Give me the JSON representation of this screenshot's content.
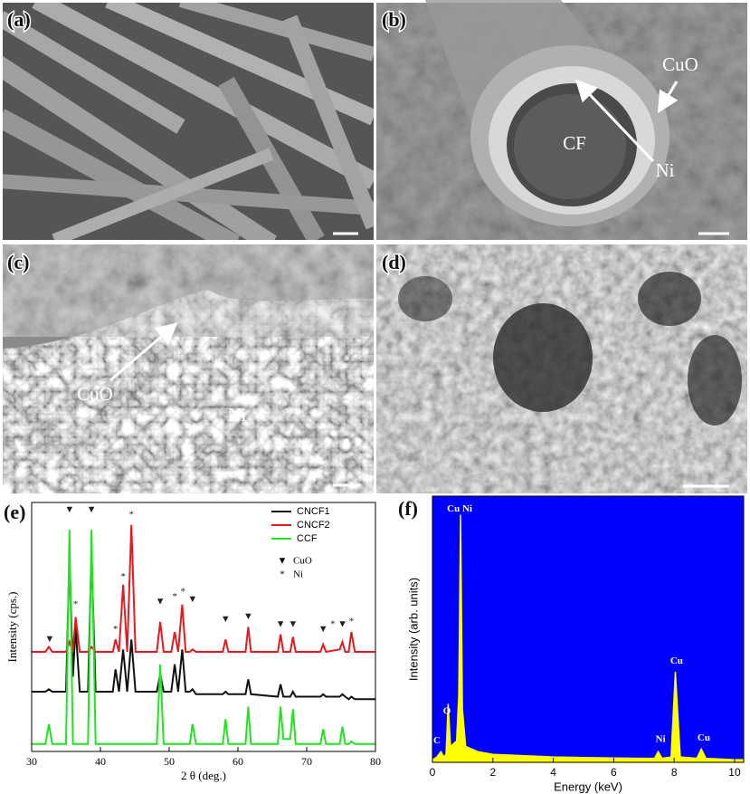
{
  "panels": [
    {
      "label": "(a)"
    },
    {
      "label": "(b)",
      "texts": [
        "CuO",
        "CF",
        "Ni"
      ]
    },
    {
      "label": "(c)",
      "texts": [
        "CuO",
        "Ni"
      ]
    },
    {
      "label": "(d)"
    }
  ],
  "chart_data": [
    {
      "type": "line",
      "panel_label": "(e)",
      "xlabel": "2 θ  (deg.)",
      "ylabel": "Intensity (cps.)",
      "xlim": [
        30,
        80
      ],
      "xticks": [
        30,
        40,
        50,
        60,
        70,
        80
      ],
      "ylim": [
        0,
        100
      ],
      "x": [
        30,
        32,
        32.5,
        33,
        35,
        35.5,
        36,
        36.4,
        37,
        38.2,
        38.7,
        39.3,
        41.8,
        42.2,
        42.7,
        43.3,
        43.9,
        44.5,
        45.1,
        48.2,
        48.7,
        49.2,
        50.3,
        50.8,
        51.3,
        51.9,
        52.4,
        53,
        53.4,
        53.9,
        57.8,
        58.2,
        58.6,
        61.1,
        61.5,
        61.9,
        65.8,
        66.2,
        66.6,
        67.6,
        68,
        68.4,
        72,
        72.4,
        72.8,
        74.8,
        75.2,
        75.6,
        76.1,
        76.5,
        77,
        80
      ],
      "series": [
        {
          "name": "CNCF1",
          "color": "#111111",
          "values": [
            24,
            24,
            25,
            24,
            24,
            78,
            30,
            50,
            24,
            24,
            80,
            24,
            24,
            33,
            24,
            41,
            24,
            45,
            24,
            24,
            31,
            24,
            24,
            35,
            24,
            41,
            24,
            24,
            25,
            23,
            23,
            24,
            23,
            23,
            29,
            23,
            22,
            27,
            22,
            22,
            24,
            22,
            22,
            23,
            22,
            22,
            23,
            22,
            21,
            22,
            21,
            21
          ]
        },
        {
          "name": "CNCF2",
          "color": "#e8191e",
          "values": [
            40,
            40,
            42,
            40,
            40,
            44,
            40,
            54,
            40,
            40,
            42,
            40,
            40,
            45,
            40,
            67,
            40,
            91,
            40,
            40,
            52,
            40,
            40,
            48,
            40,
            59,
            40,
            40,
            41,
            40,
            40,
            45,
            40,
            40,
            50,
            40,
            40,
            47,
            40,
            40,
            46,
            40,
            40,
            43,
            40,
            41,
            44,
            40,
            40,
            48,
            40,
            40
          ]
        },
        {
          "name": "CCF",
          "color": "#22e322",
          "values": [
            3,
            3,
            11,
            3,
            3,
            89,
            3,
            3,
            3,
            3,
            89,
            3,
            3,
            3,
            3,
            3,
            3,
            3,
            3,
            3,
            35,
            3,
            3,
            3,
            3,
            3,
            3,
            3,
            11,
            3,
            3,
            13,
            3,
            3,
            18,
            3,
            3,
            18,
            5,
            5,
            17,
            3,
            3,
            9,
            3,
            3,
            10,
            3,
            3,
            4,
            3,
            3
          ]
        }
      ],
      "legend_symbols": [
        {
          "symbol": "▼",
          "label": "CuO"
        },
        {
          "symbol": "*",
          "label": "Ni"
        }
      ],
      "peak_markers": [
        {
          "x": 32.6,
          "y": 45,
          "symbol": "▼"
        },
        {
          "x": 35.5,
          "y": 97,
          "symbol": "▼"
        },
        {
          "x": 38.7,
          "y": 97,
          "symbol": "▼"
        },
        {
          "x": 36.4,
          "y": 59,
          "symbol": "*"
        },
        {
          "x": 42.2,
          "y": 49,
          "symbol": "*"
        },
        {
          "x": 43.3,
          "y": 70,
          "symbol": "*"
        },
        {
          "x": 44.5,
          "y": 95,
          "symbol": "*"
        },
        {
          "x": 48.7,
          "y": 60,
          "symbol": "▼"
        },
        {
          "x": 50.8,
          "y": 62,
          "symbol": "*"
        },
        {
          "x": 52,
          "y": 64,
          "symbol": "*"
        },
        {
          "x": 53.4,
          "y": 61,
          "symbol": "▼"
        },
        {
          "x": 58.2,
          "y": 53,
          "symbol": "▼"
        },
        {
          "x": 61.5,
          "y": 54,
          "symbol": "▼"
        },
        {
          "x": 66.2,
          "y": 51,
          "symbol": "▼"
        },
        {
          "x": 68,
          "y": 51,
          "symbol": "▼"
        },
        {
          "x": 72.4,
          "y": 49,
          "symbol": "▼"
        },
        {
          "x": 73.8,
          "y": 51,
          "symbol": "*"
        },
        {
          "x": 75.2,
          "y": 51,
          "symbol": "▼"
        },
        {
          "x": 76.5,
          "y": 52,
          "symbol": "*"
        }
      ]
    },
    {
      "type": "area",
      "panel_label": "(f)",
      "xlabel": "Energy (keV)",
      "ylabel": "Intensity (arb. units)",
      "color": "#ffff00",
      "background": "#0000ff",
      "xlim": [
        0,
        10.3
      ],
      "xticks": [
        0,
        2,
        4,
        6,
        8,
        10
      ],
      "ylim": [
        0,
        100
      ],
      "x": [
        0,
        0.15,
        0.28,
        0.38,
        0.45,
        0.52,
        0.6,
        0.8,
        0.87,
        0.93,
        0.99,
        1.1,
        1.5,
        2,
        3,
        4,
        5,
        6,
        7,
        7.35,
        7.47,
        7.6,
        7.9,
        8.04,
        8.2,
        8.75,
        8.9,
        9.05,
        10,
        10.3
      ],
      "values": [
        1,
        2,
        4,
        2,
        3,
        22,
        6,
        8,
        25,
        93,
        20,
        6,
        4,
        3,
        2.5,
        2,
        1.8,
        1.6,
        1.5,
        1.5,
        4,
        1.5,
        2,
        34,
        2,
        1.5,
        5,
        1.5,
        1,
        1
      ],
      "peak_labels": [
        {
          "x": 0.15,
          "y": 8,
          "label": "C"
        },
        {
          "x": 0.48,
          "y": 19,
          "label": "O"
        },
        {
          "x": 0.9,
          "y": 95,
          "label": "Cu Ni"
        },
        {
          "x": 7.55,
          "y": 8.5,
          "label": "Ni"
        },
        {
          "x": 8.08,
          "y": 38,
          "label": "Cu"
        },
        {
          "x": 8.98,
          "y": 9,
          "label": "Cu"
        }
      ]
    }
  ]
}
